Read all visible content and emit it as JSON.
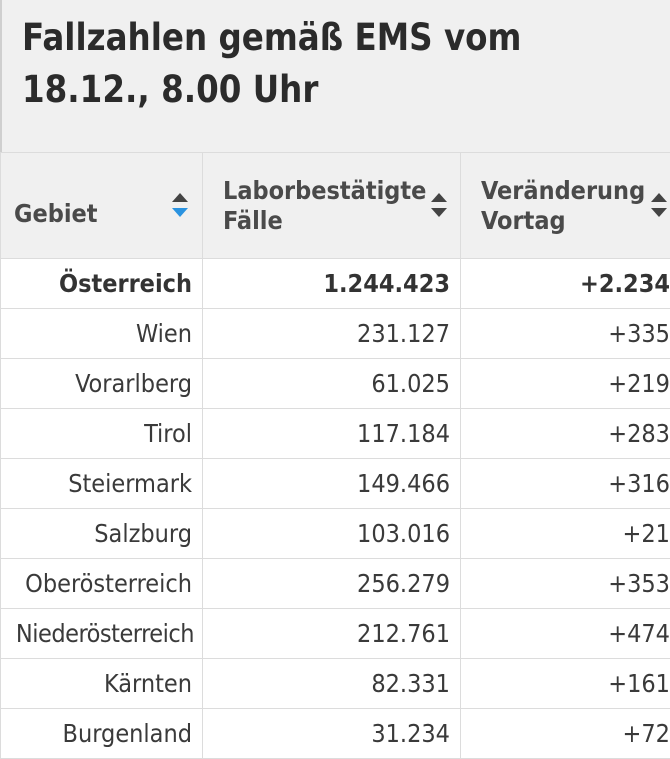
{
  "title": "Fallzahlen gemäß EMS vom 18.12., 8.00 Uhr",
  "colors": {
    "header_bg": "#f0f0f0",
    "sort_active": "#2a93e0",
    "grid": "#dcdcdc"
  },
  "table": {
    "headers": [
      {
        "label": "Gebiet",
        "sort_icon": "sort-icon-active"
      },
      {
        "label": "Laborbestätigte Fälle",
        "sort_icon": "sort-icon"
      },
      {
        "label": "Veränderung Vortag",
        "sort_icon": "sort-icon"
      }
    ],
    "rows": [
      {
        "gebiet": "Österreich",
        "faelle": "1.244.423",
        "veraenderung": "+2.234"
      },
      {
        "gebiet": "Wien",
        "faelle": "231.127",
        "veraenderung": "+335"
      },
      {
        "gebiet": "Vorarlberg",
        "faelle": "61.025",
        "veraenderung": "+219"
      },
      {
        "gebiet": "Tirol",
        "faelle": "117.184",
        "veraenderung": "+283"
      },
      {
        "gebiet": "Steiermark",
        "faelle": "149.466",
        "veraenderung": "+316"
      },
      {
        "gebiet": "Salzburg",
        "faelle": "103.016",
        "veraenderung": "+21"
      },
      {
        "gebiet": "Oberösterreich",
        "faelle": "256.279",
        "veraenderung": "+353"
      },
      {
        "gebiet": "Niederösterreich",
        "faelle": "212.761",
        "veraenderung": "+474"
      },
      {
        "gebiet": "Kärnten",
        "faelle": "82.331",
        "veraenderung": "+161"
      },
      {
        "gebiet": "Burgenland",
        "faelle": "31.234",
        "veraenderung": "+72"
      }
    ]
  }
}
